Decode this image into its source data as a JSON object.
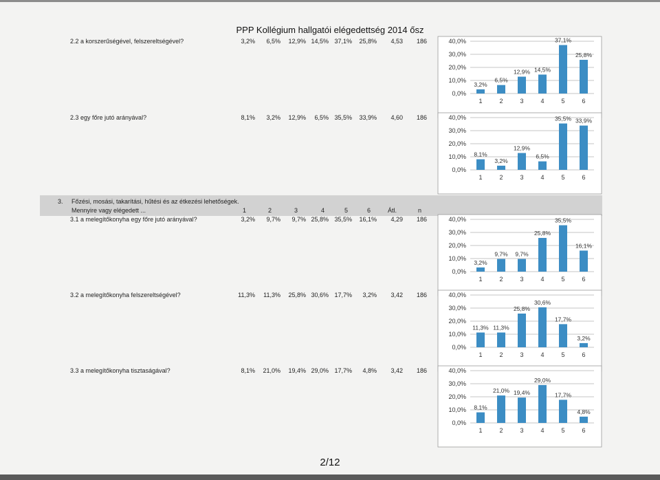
{
  "page": {
    "title": "PPP Kollégium hallgatói elégedettség 2014 ősz",
    "page_number": "2/12"
  },
  "section": {
    "number": "3.",
    "title": "Főzési, mosási, takarítási, hűtési és az étkezési lehetőségek.",
    "subtitle": "Mennyire vagy elégedett ...",
    "headers": [
      "1",
      "2",
      "3",
      "4",
      "5",
      "6",
      "Átl.",
      "n"
    ]
  },
  "rows": [
    {
      "question": "2.2 a korszerűségével, felszereltségével?",
      "pcts": [
        "3,2%",
        "6,5%",
        "12,9%",
        "14,5%",
        "37,1%",
        "25,8%"
      ],
      "avg": "4,53",
      "n": "186"
    },
    {
      "question": "2.3 egy főre jutó arányával?",
      "pcts": [
        "8,1%",
        "3,2%",
        "12,9%",
        "6,5%",
        "35,5%",
        "33,9%"
      ],
      "avg": "4,60",
      "n": "186"
    },
    {
      "question": "3.1 a melegítőkonyha egy főre jutó arányával?",
      "pcts": [
        "3,2%",
        "9,7%",
        "9,7%",
        "25,8%",
        "35,5%",
        "16,1%"
      ],
      "avg": "4,29",
      "n": "186"
    },
    {
      "question": "3.2 a melegítőkonyha felszereltségével?",
      "pcts": [
        "11,3%",
        "11,3%",
        "25,8%",
        "30,6%",
        "17,7%",
        "3,2%"
      ],
      "avg": "3,42",
      "n": "186"
    },
    {
      "question": "3.3 a melegítőkonyha tisztaságával?",
      "pcts": [
        "8,1%",
        "21,0%",
        "19,4%",
        "29,0%",
        "17,7%",
        "4,8%"
      ],
      "avg": "3,42",
      "n": "186"
    }
  ],
  "colors": {
    "bar": "#3c8dc4"
  },
  "chart_data": [
    {
      "type": "bar",
      "categories": [
        "1",
        "2",
        "3",
        "4",
        "5",
        "6"
      ],
      "values": [
        3.2,
        6.5,
        12.9,
        14.5,
        37.1,
        25.8
      ],
      "labels": [
        "3,2%",
        "6,5%",
        "12,9%",
        "14,5%",
        "37,1%",
        "25,8%"
      ],
      "yticks": [
        "0,0%",
        "10,0%",
        "20,0%",
        "30,0%",
        "40,0%"
      ],
      "ylim": [
        0,
        40
      ],
      "grid": true
    },
    {
      "type": "bar",
      "categories": [
        "1",
        "2",
        "3",
        "4",
        "5",
        "6"
      ],
      "values": [
        8.1,
        3.2,
        12.9,
        6.5,
        35.5,
        33.9
      ],
      "labels": [
        "8,1%",
        "3,2%",
        "12,9%",
        "6,5%",
        "35,5%",
        "33,9%"
      ],
      "yticks": [
        "0,0%",
        "10,0%",
        "20,0%",
        "30,0%",
        "40,0%"
      ],
      "ylim": [
        0,
        40
      ],
      "grid": true
    },
    {
      "type": "bar",
      "categories": [
        "1",
        "2",
        "3",
        "4",
        "5",
        "6"
      ],
      "values": [
        3.2,
        9.7,
        9.7,
        25.8,
        35.5,
        16.1
      ],
      "labels": [
        "3,2%",
        "9,7%",
        "9,7%",
        "25,8%",
        "35,5%",
        "16,1%"
      ],
      "yticks": [
        "0,0%",
        "10,0%",
        "20,0%",
        "30,0%",
        "40,0%"
      ],
      "ylim": [
        0,
        40
      ],
      "grid": true
    },
    {
      "type": "bar",
      "categories": [
        "1",
        "2",
        "3",
        "4",
        "5",
        "6"
      ],
      "values": [
        11.3,
        11.3,
        25.8,
        30.6,
        17.7,
        3.2
      ],
      "labels": [
        "11,3%",
        "11,3%",
        "25,8%",
        "30,6%",
        "17,7%",
        "3,2%"
      ],
      "yticks": [
        "0,0%",
        "10,0%",
        "20,0%",
        "30,0%",
        "40,0%"
      ],
      "ylim": [
        0,
        40
      ],
      "grid": true
    },
    {
      "type": "bar",
      "categories": [
        "1",
        "2",
        "3",
        "4",
        "5",
        "6"
      ],
      "values": [
        8.1,
        21.0,
        19.4,
        29.0,
        17.7,
        4.8
      ],
      "labels": [
        "8,1%",
        "21,0%",
        "19,4%",
        "29,0%",
        "17,7%",
        "4,8%"
      ],
      "yticks": [
        "0,0%",
        "10,0%",
        "20,0%",
        "30,0%",
        "40,0%"
      ],
      "ylim": [
        0,
        40
      ],
      "grid": true
    }
  ]
}
